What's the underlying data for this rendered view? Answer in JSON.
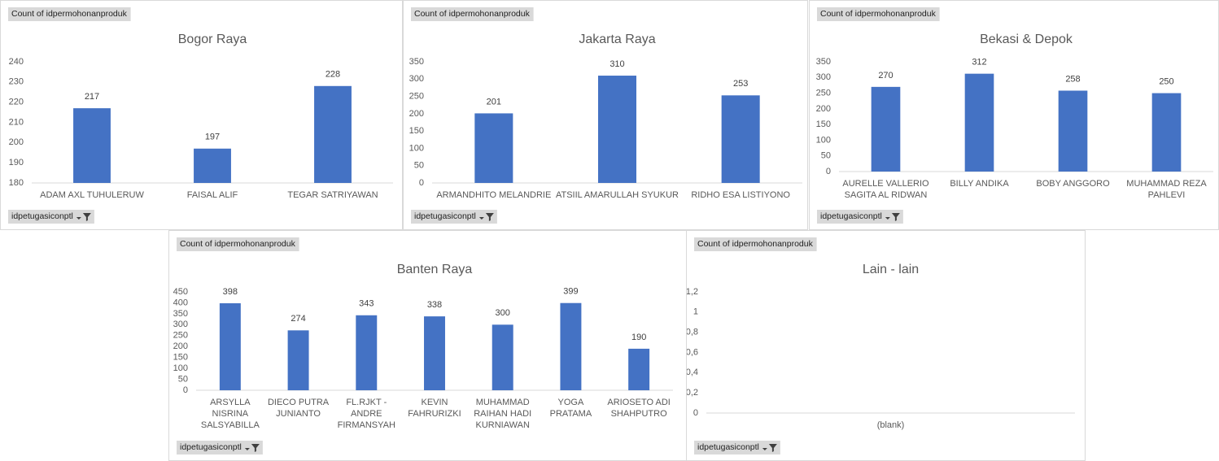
{
  "chart_data": [
    {
      "type": "bar",
      "title": "Bogor Raya",
      "value_field": "Count of idpermohonanproduk",
      "filter_field": "idpetugasiconptl",
      "categories": [
        "ADAM AXL TUHULERUW",
        "FAISAL ALIF",
        "TEGAR SATRIYAWAN"
      ],
      "values": [
        217,
        197,
        228
      ],
      "color": "#4472c4",
      "ylim": [
        180,
        240
      ],
      "yticks": [
        180,
        190,
        200,
        210,
        220,
        230,
        240
      ],
      "grid": false
    },
    {
      "type": "bar",
      "title": "Jakarta Raya",
      "value_field": "Count of idpermohonanproduk",
      "filter_field": "idpetugasiconptl",
      "categories": [
        "ARMANDHITO MELANDRIE",
        "ATSIIL AMARULLAH SYUKUR",
        "RIDHO ESA LISTIYONO"
      ],
      "values": [
        201,
        310,
        253
      ],
      "color": "#4472c4",
      "ylim": [
        0,
        350
      ],
      "yticks": [
        0,
        50,
        100,
        150,
        200,
        250,
        300,
        350
      ],
      "grid": false
    },
    {
      "type": "bar",
      "title": "Bekasi & Depok",
      "value_field": "Count of idpermohonanproduk",
      "filter_field": "idpetugasiconptl",
      "categories": [
        "AURELLE VALLERIO SAGITA AL RIDWAN",
        "BILLY ANDIKA",
        "BOBY ANGGORO",
        "MUHAMMAD REZA PAHLEVI"
      ],
      "values": [
        270,
        312,
        258,
        250
      ],
      "color": "#4472c4",
      "ylim": [
        0,
        350
      ],
      "yticks": [
        0,
        50,
        100,
        150,
        200,
        250,
        300,
        350
      ],
      "grid": false
    },
    {
      "type": "bar",
      "title": "Banten Raya",
      "value_field": "Count of idpermohonanproduk",
      "filter_field": "idpetugasiconptl",
      "categories": [
        "ARSYLLA NISRINA SALSYABILLA",
        "DIECO PUTRA JUNIANTO",
        "FL.RJKT - ANDRE FIRMANSYAH",
        "KEVIN FAHRURIZKI",
        "MUHAMMAD RAIHAN HADI KURNIAWAN",
        "YOGA PRATAMA",
        "ARIOSETO ADI SHAHPUTRO"
      ],
      "values": [
        398,
        274,
        343,
        338,
        300,
        399,
        190
      ],
      "color": "#4472c4",
      "ylim": [
        0,
        450
      ],
      "yticks": [
        0,
        50,
        100,
        150,
        200,
        250,
        300,
        350,
        400,
        450
      ],
      "grid": false
    },
    {
      "type": "bar",
      "title": "Lain - lain",
      "value_field": "Count of idpermohonanproduk",
      "filter_field": "idpetugasiconptl",
      "categories": [
        "(blank)"
      ],
      "values": [
        null
      ],
      "color": "#4472c4",
      "ylim": [
        0,
        1.2
      ],
      "yticks": [
        0,
        {
          "value": 0.2,
          "label": "0,2"
        },
        {
          "value": 0.4,
          "label": "0,4"
        },
        {
          "value": 0.6,
          "label": "0,6"
        },
        {
          "value": 0.8,
          "label": "0,8"
        },
        1,
        {
          "value": 1.2,
          "label": "1,2"
        }
      ],
      "grid": false
    }
  ]
}
